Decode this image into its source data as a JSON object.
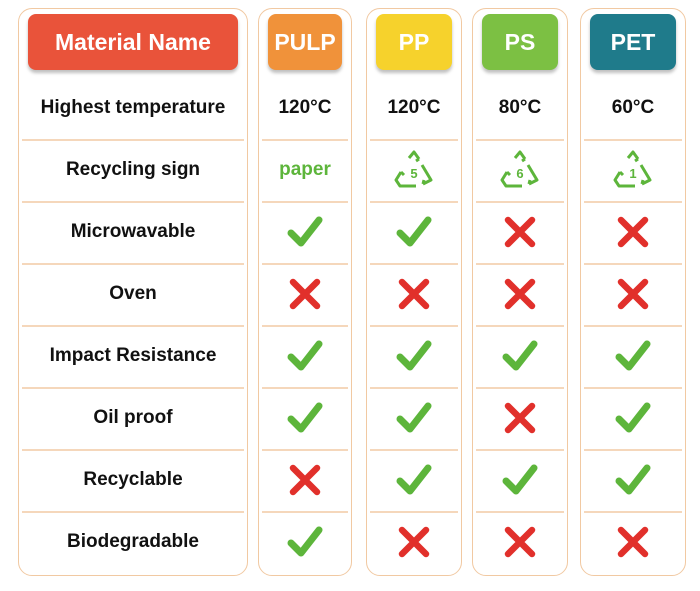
{
  "header": {
    "columns": [
      {
        "label": "Material Name",
        "color": "#e9533a"
      },
      {
        "label": "PULP",
        "color": "#f0923a"
      },
      {
        "label": "PP",
        "color": "#f6d22c"
      },
      {
        "label": "PS",
        "color": "#7cc043"
      },
      {
        "label": "PET",
        "color": "#1f7b8b"
      }
    ]
  },
  "check_color": "#5db53b",
  "cross_color": "#e1302b",
  "rows": [
    {
      "label": "Highest temperature",
      "cells": [
        "120°C",
        "120°C",
        "80°C",
        "60°C"
      ]
    },
    {
      "label": "Recycling sign",
      "cells": [
        "paper",
        5,
        6,
        1
      ]
    },
    {
      "label": "Microwavable",
      "cells": [
        true,
        true,
        false,
        false
      ]
    },
    {
      "label": "Oven",
      "cells": [
        false,
        false,
        false,
        false
      ]
    },
    {
      "label": "Impact Resistance",
      "cells": [
        true,
        true,
        true,
        true
      ]
    },
    {
      "label": "Oil proof",
      "cells": [
        true,
        true,
        false,
        true
      ]
    },
    {
      "label": "Recyclable",
      "cells": [
        false,
        true,
        true,
        true
      ]
    },
    {
      "label": "Biodegradable",
      "cells": [
        true,
        false,
        false,
        false
      ]
    }
  ]
}
